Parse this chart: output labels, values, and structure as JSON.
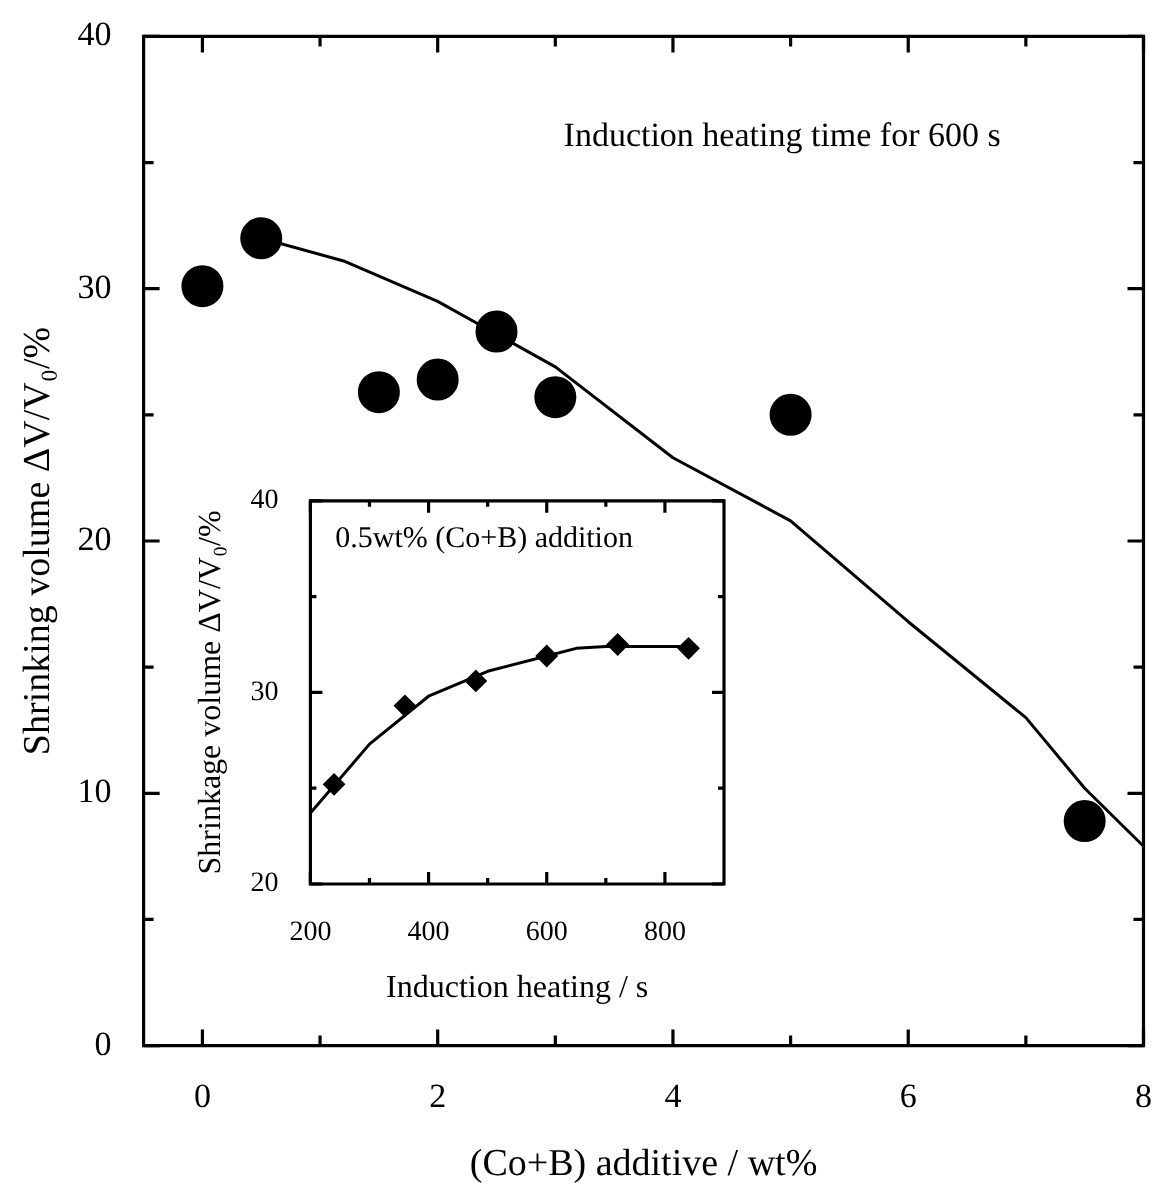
{
  "chart_data": [
    {
      "type": "scatter",
      "xlabel": "(Co+B) additive / wt%",
      "ylabel": "Shrinking volume ΔV/V₀/%",
      "annotations": [
        "Induction heating time for 600 s"
      ],
      "xlim": [
        -0.5,
        8
      ],
      "ylim": [
        0,
        40
      ],
      "xticks": [
        0,
        {
          "value": 1,
          "label": null
        },
        2,
        {
          "value": 3,
          "label": null
        },
        4,
        {
          "value": 5,
          "label": null
        },
        6,
        {
          "value": 7,
          "label": null
        },
        8
      ],
      "yticks": [
        0,
        {
          "value": 5,
          "label": null
        },
        10,
        {
          "value": 15,
          "label": null
        },
        20,
        {
          "value": 25,
          "label": null
        },
        30,
        {
          "value": 35,
          "label": null
        },
        40
      ],
      "series": [
        {
          "type": "scatter",
          "color": "#000000",
          "marker": "circle",
          "x": [
            0,
            0.5,
            1.5,
            2,
            2.5,
            3,
            5,
            7.5
          ],
          "values": [
            30.1,
            32,
            25.9,
            26.4,
            28.3,
            25.7,
            25,
            8.9
          ]
        },
        {
          "type": "line",
          "color": "#000000",
          "marker": "none",
          "x": [
            0.5,
            1.2,
            2,
            3,
            4,
            5,
            6,
            7,
            7.5,
            8
          ],
          "values": [
            32,
            31.1,
            29.5,
            26.9,
            23.3,
            20.8,
            16.8,
            13,
            10.2,
            7.9
          ]
        }
      ]
    },
    {
      "type": "scatter",
      "xlabel": "Induction heating / s",
      "ylabel": "Shrinkage volume ΔV/V₀/%",
      "annotations": [
        "0.5wt% (Co+B) addition"
      ],
      "xlim": [
        200,
        900
      ],
      "ylim": [
        20,
        40
      ],
      "xticks": [
        200,
        {
          "value": 300,
          "label": null
        },
        400,
        {
          "value": 500,
          "label": null
        },
        600,
        {
          "value": 700,
          "label": null
        },
        800
      ],
      "yticks": [
        20,
        {
          "value": 25,
          "label": null
        },
        30,
        {
          "value": 35,
          "label": null
        },
        40
      ],
      "series": [
        {
          "type": "scatter",
          "color": "#000000",
          "marker": "diamond",
          "x": [
            240,
            360,
            480,
            600,
            720,
            840
          ],
          "values": [
            25.2,
            29.3,
            30.6,
            31.9,
            32.5,
            32.3
          ]
        },
        {
          "type": "line",
          "color": "#000000",
          "marker": "none",
          "x": [
            200,
            300,
            400,
            500,
            600,
            650,
            700,
            850
          ],
          "values": [
            23.7,
            27.3,
            29.8,
            31.1,
            31.9,
            32.3,
            32.4,
            32.4
          ]
        }
      ]
    }
  ]
}
